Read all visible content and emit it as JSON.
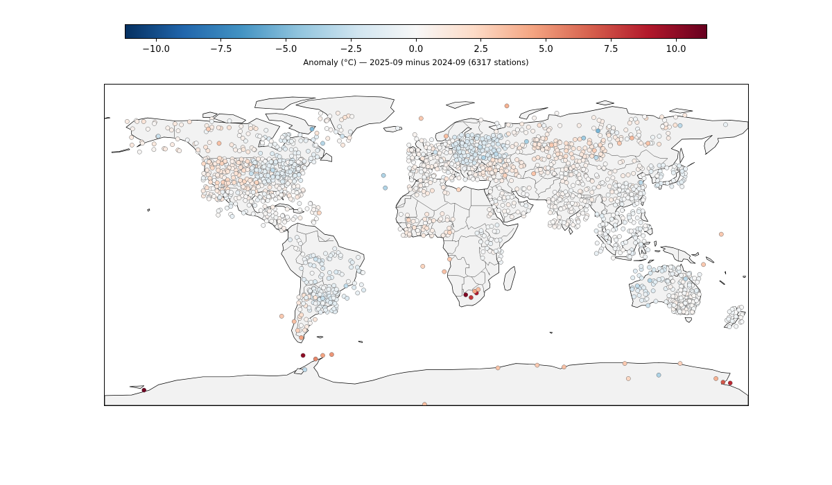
{
  "figure": {
    "colorbar": {
      "label": "Anomaly (°C) — 2025-09 minus 2024-09 (6317 stations)",
      "range": [
        -11.2,
        11.2
      ],
      "colormap": [
        "#053061",
        "#2166ac",
        "#4393c3",
        "#92c5de",
        "#d1e5f0",
        "#f7f7f7",
        "#fddbc7",
        "#f4a582",
        "#d6604d",
        "#b2182b",
        "#67001f"
      ],
      "ticks": [
        {
          "value": -10.0,
          "label": "−10.0"
        },
        {
          "value": -7.5,
          "label": "−7.5"
        },
        {
          "value": -5.0,
          "label": "−5.0"
        },
        {
          "value": -2.5,
          "label": "−2.5"
        },
        {
          "value": 0.0,
          "label": "0.0"
        },
        {
          "value": 2.5,
          "label": "2.5"
        },
        {
          "value": 5.0,
          "label": "5.0"
        },
        {
          "value": 7.5,
          "label": "7.5"
        },
        {
          "value": 10.0,
          "label": "10.0"
        }
      ]
    },
    "map": {
      "projection": "plate-carree",
      "lon_range": [
        -180,
        180
      ],
      "lat_range": [
        -90,
        90
      ],
      "land_color": "#f2f2f2",
      "coast_color": "#000000",
      "station_edge_color": "#555555",
      "notable_stations": [
        {
          "lon": 28,
          "lat": -27,
          "anomaly": 9.0
        },
        {
          "lon": 22,
          "lat": -28,
          "anomaly": 10.5
        },
        {
          "lon": 25,
          "lat": -29.5,
          "anomaly": 8.0
        },
        {
          "lon": 27,
          "lat": -26,
          "anomaly": 4.5
        },
        {
          "lon": 29,
          "lat": -25,
          "anomaly": 3.5
        },
        {
          "lon": -69,
          "lat": -62,
          "anomaly": 10.0
        },
        {
          "lon": -158,
          "lat": -81.5,
          "anomaly": 11.0
        },
        {
          "lon": 170,
          "lat": -77.5,
          "anomaly": 8.5
        },
        {
          "lon": 166,
          "lat": -77,
          "anomaly": 7.0
        },
        {
          "lon": 162,
          "lat": -75,
          "anomaly": 4.0
        },
        {
          "lon": -1,
          "lat": -89.5,
          "anomaly": 3.5
        },
        {
          "lon": 111,
          "lat": -66.5,
          "anomaly": 3.0
        },
        {
          "lon": 40,
          "lat": -69,
          "anomaly": 3.2
        },
        {
          "lon": 62,
          "lat": -67.5,
          "anomaly": 3.0
        },
        {
          "lon": 77,
          "lat": -68.5,
          "anomaly": 3.4
        },
        {
          "lon": 142,
          "lat": -66.5,
          "anomaly": 2.6
        },
        {
          "lon": -62,
          "lat": -64,
          "anomaly": 5.5
        },
        {
          "lon": -58,
          "lat": -62,
          "anomaly": 4.5
        },
        {
          "lon": -53,
          "lat": -61.5,
          "anomaly": 5.0
        },
        {
          "lon": 113,
          "lat": -75,
          "anomaly": 2.4
        },
        {
          "lon": -68,
          "lat": -70,
          "anomaly": -3.0
        },
        {
          "lon": 130,
          "lat": -73,
          "anomaly": -3.5
        },
        {
          "lon": -64,
          "lat": 65,
          "anomaly": -5.0
        },
        {
          "lon": 96,
          "lat": 64,
          "anomaly": -5.2
        },
        {
          "lon": 88,
          "lat": 60,
          "anomaly": -4.0
        },
        {
          "lon": 56,
          "lat": 58,
          "anomaly": -3.8
        },
        {
          "lon": 32,
          "lat": 49,
          "anomaly": -3.5
        },
        {
          "lon": -58,
          "lat": 57,
          "anomaly": -3.2
        },
        {
          "lon": 142,
          "lat": 67,
          "anomaly": -3.0
        },
        {
          "lon": 120,
          "lat": 35,
          "anomaly": -3.0
        },
        {
          "lon": -24,
          "lat": 39,
          "anomaly": -3.4
        },
        {
          "lon": -150,
          "lat": 61,
          "anomaly": -2.5
        },
        {
          "lon": 95,
          "lat": 49,
          "anomaly": -3.0
        },
        {
          "lon": -47,
          "lat": 61,
          "anomaly": -2.2
        },
        {
          "lon": 11,
          "lat": 61,
          "anomaly": 3.5
        },
        {
          "lon": 45,
          "lat": 78,
          "anomaly": 4.0
        },
        {
          "lon": -3,
          "lat": 71,
          "anomaly": 3.0
        },
        {
          "lon": 108,
          "lat": 57,
          "anomaly": 3.0
        },
        {
          "lon": 115,
          "lat": 60,
          "anomaly": 3.6
        },
        {
          "lon": 124,
          "lat": 57,
          "anomaly": 3.2
        },
        {
          "lon": 70,
          "lat": 56,
          "anomaly": 3.0
        },
        {
          "lon": 94,
          "lat": 53,
          "anomaly": 2.8
        },
        {
          "lon": 60,
          "lat": 40,
          "anomaly": 3.2
        },
        {
          "lon": 44,
          "lat": 39,
          "anomaly": 2.6
        },
        {
          "lon": -116,
          "lat": 57,
          "anomaly": 3.3
        },
        {
          "lon": -122,
          "lat": 65,
          "anomaly": 2.8
        },
        {
          "lon": -95,
          "lat": 35,
          "anomaly": 2.5
        },
        {
          "lon": -10,
          "lat": 14,
          "anomaly": 2.4
        },
        {
          "lon": 18,
          "lat": 31,
          "anomaly": 2.5
        },
        {
          "lon": 165,
          "lat": 6,
          "anomaly": 3.0
        },
        {
          "lon": 13,
          "lat": 7,
          "anomaly": 2.4
        },
        {
          "lon": 145,
          "lat": -19,
          "anomaly": -3.0
        },
        {
          "lon": 125,
          "lat": -20,
          "anomaly": -3.2
        },
        {
          "lon": 118,
          "lat": -23,
          "anomaly": -2.8
        },
        {
          "lon": 124,
          "lat": -34,
          "anomaly": -2.4
        },
        {
          "lon": -58,
          "lat": -30,
          "anomaly": -2.6
        },
        {
          "lon": -45,
          "lat": -23,
          "anomaly": -2.8
        },
        {
          "lon": -62,
          "lat": -8,
          "anomaly": -2.4
        },
        {
          "lon": -81,
          "lat": -40,
          "anomaly": 3.0
        },
        {
          "lon": -74,
          "lat": -43,
          "anomaly": 3.4
        },
        {
          "lon": -70,
          "lat": -52,
          "anomaly": 4.5
        },
        {
          "lon": -72,
          "lat": -48,
          "anomaly": 2.6
        },
        {
          "lon": 13,
          "lat": -8,
          "anomaly": 3.0
        },
        {
          "lon": -2,
          "lat": -12,
          "anomaly": 2.5
        },
        {
          "lon": 10,
          "lat": -15,
          "anomaly": 3.3
        },
        {
          "lon": 155,
          "lat": -11,
          "anomaly": 3.0
        },
        {
          "lon": -60,
          "lat": 18,
          "anomaly": 2.4
        },
        {
          "lon": -23,
          "lat": 32,
          "anomaly": -3.4
        },
        {
          "lon": -98,
          "lat": 40,
          "anomaly": -2.6
        },
        {
          "lon": -86,
          "lat": 42,
          "anomaly": -2.8
        },
        {
          "lon": 30,
          "lat": 55,
          "anomaly": -2.6
        },
        {
          "lon": 39,
          "lat": 51,
          "anomaly": -3.0
        },
        {
          "lon": 5,
          "lat": 52,
          "anomaly": -2.3
        }
      ]
    }
  }
}
